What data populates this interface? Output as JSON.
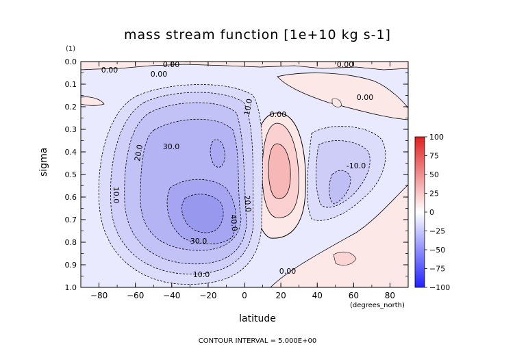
{
  "chart_data": {
    "type": "heatmap",
    "title": "mass stream function [1e+10 kg s-1]",
    "xlabel": "latitude",
    "ylabel": "sigma",
    "x_units": "(degrees_north)",
    "y_units_label": "(1)",
    "footer": "CONTOUR INTERVAL = 5.000E+00",
    "xlim": [
      -90,
      90
    ],
    "ylim": [
      0.0,
      1.0
    ],
    "y_inverted": true,
    "x_ticks": [
      "-80",
      "-60",
      "-40",
      "-20",
      "0",
      "20",
      "40",
      "60",
      "80"
    ],
    "y_ticks": [
      "0.0",
      "0.1",
      "0.2",
      "0.3",
      "0.4",
      "0.5",
      "0.6",
      "0.7",
      "0.8",
      "0.9",
      "1.0"
    ],
    "colorbar": {
      "ticks": [
        "100",
        "75",
        "50",
        "25",
        "0",
        "-25",
        "-50",
        "-75",
        "-100"
      ],
      "range": [
        -100,
        100
      ],
      "colors": {
        "negative": "#0000ff",
        "zero": "#ffffff",
        "positive": "#ff0000"
      }
    },
    "contour_interval": 5.0,
    "contour_labels": [
      "0.00",
      "0.00",
      "0.00",
      "0.00",
      "0.00",
      "0.00",
      "0.00",
      "10.0",
      "10.0",
      "10.0",
      "20.0",
      "20.0",
      "30.0",
      "30.0",
      "40.0",
      "-10.0"
    ],
    "features": [
      {
        "kind": "min",
        "lat": -20,
        "sigma": 0.65,
        "value": -52
      },
      {
        "kind": "max",
        "lat": 17,
        "sigma": 0.45,
        "value": 22
      },
      {
        "kind": "min",
        "lat": 52,
        "sigma": 0.55,
        "value": -16
      }
    ]
  }
}
